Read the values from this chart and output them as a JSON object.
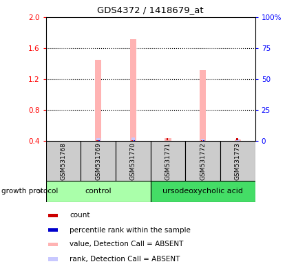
{
  "title": "GDS4372 / 1418679_at",
  "samples": [
    "GSM531768",
    "GSM531769",
    "GSM531770",
    "GSM531771",
    "GSM531772",
    "GSM531773"
  ],
  "ylim_left": [
    0.4,
    2.0
  ],
  "ylim_right": [
    0,
    100
  ],
  "left_ticks": [
    0.4,
    0.8,
    1.2,
    1.6,
    2.0
  ],
  "right_ticks": [
    0,
    25,
    50,
    75,
    100
  ],
  "bar_values_pink": [
    0.0,
    1.45,
    1.72,
    0.435,
    1.32,
    0.42
  ],
  "bar_values_lavender": [
    0.0,
    0.44,
    0.45,
    0.0,
    0.43,
    0.43
  ],
  "small_red_present": [
    false,
    true,
    true,
    false,
    true,
    false
  ],
  "small_blue_present": [
    false,
    true,
    true,
    false,
    true,
    false
  ],
  "small_red_absent": [
    false,
    false,
    false,
    true,
    false,
    true
  ],
  "small_blue_absent": [
    false,
    false,
    false,
    false,
    false,
    false
  ],
  "color_pink": "#FFB3B3",
  "color_lavender": "#C8C8FF",
  "color_red": "#CC0000",
  "color_blue": "#0000CC",
  "color_gray_box": "#CCCCCC",
  "color_control_green": "#AAFFAA",
  "color_urso_green": "#44DD66",
  "bar_width": 0.18,
  "legend_items": [
    {
      "color": "#CC0000",
      "label": "count"
    },
    {
      "color": "#0000CC",
      "label": "percentile rank within the sample"
    },
    {
      "color": "#FFB3B3",
      "label": "value, Detection Call = ABSENT"
    },
    {
      "color": "#C8C8FF",
      "label": "rank, Detection Call = ABSENT"
    }
  ]
}
